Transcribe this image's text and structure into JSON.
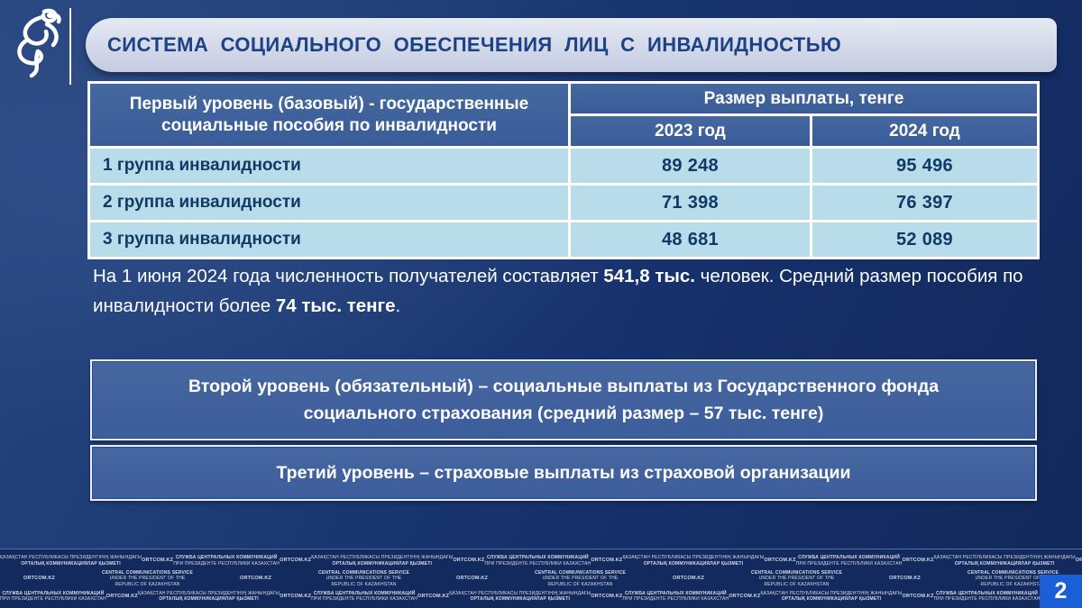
{
  "slide": {
    "title": "СИСТЕМА СОЦИАЛЬНОГО ОБЕСПЕЧЕНИЯ ЛИЦ С ИНВАЛИДНОСТЬЮ",
    "page_number": "2"
  },
  "icons": {
    "logo": "winged-leopard-emblem"
  },
  "colors": {
    "background_navy": "#16306b",
    "title_pill": "#d3d9e9",
    "title_text": "#1d4284",
    "table_header_blue": "#3c5f9c",
    "table_row_blue": "#b9dcea",
    "table_text_navy": "#0f3a66",
    "level_box_blue": "#3e5f9e",
    "page_number_blue": "#1a5fd6"
  },
  "table": {
    "col1_header": "Первый уровень (базовый) - государственные социальные пособия по инвалидности",
    "payment_header": "Размер выплаты, тенге",
    "year_2023": "2023 год",
    "year_2024": "2024 год",
    "rows": [
      {
        "label": "1 группа инвалидности",
        "v2023": "89 248",
        "v2024": "95 496"
      },
      {
        "label": "2 группа инвалидности",
        "v2023": "71 398",
        "v2024": "76 397"
      },
      {
        "label": "3 группа инвалидности",
        "v2023": "48 681",
        "v2024": "52 089"
      }
    ]
  },
  "chart_data": {
    "type": "table",
    "title": "Первый уровень (базовый) - государственные социальные пособия по инвалидности",
    "columns": [
      "",
      "2023 год",
      "2024 год"
    ],
    "unit": "Размер выплаты, тенге",
    "categories": [
      "1 группа инвалидности",
      "2 группа инвалидности",
      "3 группа инвалидности"
    ],
    "series": [
      {
        "name": "2023 год",
        "values": [
          89248,
          71398,
          48681
        ]
      },
      {
        "name": "2024 год",
        "values": [
          95496,
          76397,
          52089
        ]
      }
    ]
  },
  "note": {
    "part1": "На 1 июня 2024 года численность получателей составляет ",
    "bold1": "541,8 тыс.",
    "part2": " человек. Средний размер пособия по инвалидности более ",
    "bold2": "74 тыс. тенге",
    "part3": "."
  },
  "levels": {
    "second": "Второй уровень (обязательный) – социальные выплаты из Государственного фонда социального страхования (средний размер – 57 тыс. тенге)",
    "third": "Третий уровень – страховые выплаты из страховой организации"
  },
  "footer": {
    "blocks": {
      "kz": {
        "line1": "ҚАЗАҚСТАН РЕСПУБЛИКАСЫ ПРЕЗИДЕНТІНІҢ ЖАНЫНДАҒЫ",
        "line2": "ОРТАЛЫҚ КОММУНИКАЦИЯЛАР ҚЫЗМЕТІ",
        "bold": "line2"
      },
      "ru": {
        "line1": "СЛУЖБА ЦЕНТРАЛЬНЫХ КОММУНИКАЦИЙ",
        "line2": "ПРИ ПРЕЗИДЕНТЕ РЕСПУБЛИКИ КАЗАХСТАН",
        "bold": "line1"
      },
      "en": {
        "line1": "CENTRAL COMMUNICATIONS SERVICE",
        "line2": "UNDER THE PRESIDENT OF THE",
        "line3": "REPUBLIC OF KAZAKHSTAN",
        "bold": "line1"
      },
      "url": {
        "line1": "ORTCOM.KZ",
        "bold": "line1"
      }
    },
    "rows": [
      [
        "kz",
        "url",
        "ru",
        "url",
        "kz",
        "url",
        "ru",
        "url",
        "kz",
        "url",
        "ru",
        "url",
        "kz",
        "url",
        "ru",
        "url"
      ],
      [
        "url",
        "en",
        "url",
        "en",
        "url",
        "en",
        "url",
        "en",
        "url",
        "en"
      ],
      [
        "ru",
        "url",
        "kz",
        "url",
        "ru",
        "url",
        "kz",
        "url",
        "ru",
        "url",
        "kz",
        "url",
        "ru",
        "url",
        "kz",
        "url"
      ]
    ]
  }
}
